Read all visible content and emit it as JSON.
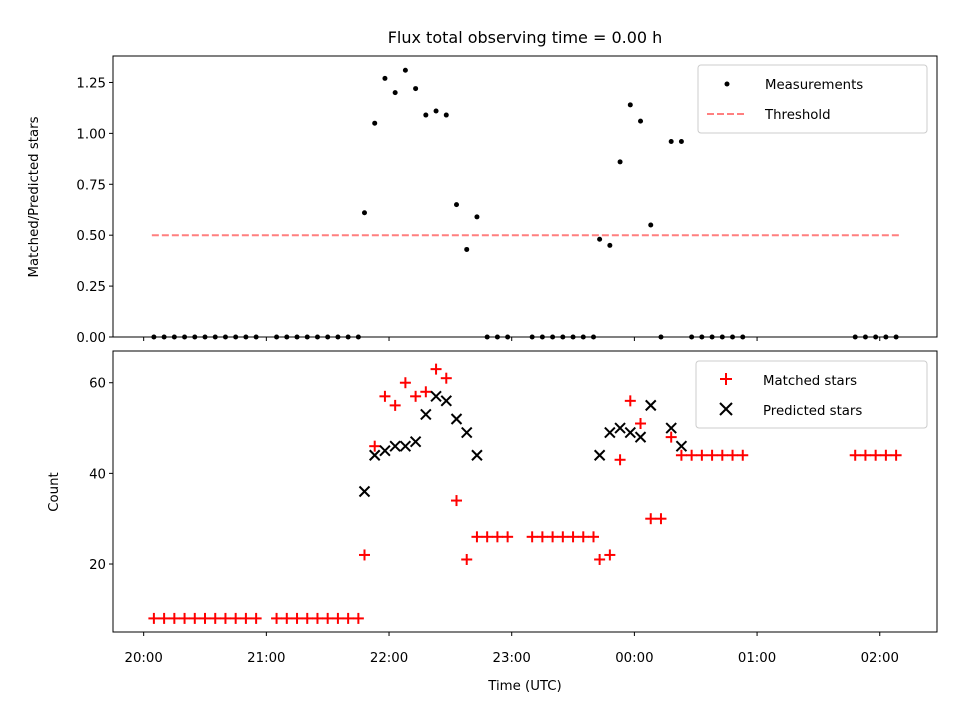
{
  "chart_data": {
    "type": "scatter",
    "title": "Flux total observing time = 0.00 h",
    "xlabel": "Time (UTC)",
    "x_tick_labels": [
      "20:00",
      "21:00",
      "22:00",
      "23:00",
      "00:00",
      "01:00",
      "02:00"
    ],
    "x_tick_times": [
      "20:00",
      "21:00",
      "22:00",
      "23:00",
      "00:00",
      "01:00",
      "02:00"
    ],
    "xlim": [
      "19:45",
      "02:28"
    ],
    "panels": [
      {
        "ylabel": "Matched/Predicted stars",
        "ylim": [
          0,
          1.38
        ],
        "y_ticks": [
          "0.00",
          "0.25",
          "0.50",
          "0.75",
          "1.00",
          "1.25"
        ],
        "y_tick_values": [
          0,
          0.25,
          0.5,
          0.75,
          1.0,
          1.25
        ],
        "legend_position": "upper right",
        "series": [
          {
            "name": "Measurements",
            "marker": "dot",
            "color": "#000000",
            "points": [
              [
                "20:05",
                0
              ],
              [
                "20:10",
                0
              ],
              [
                "20:15",
                0
              ],
              [
                "20:20",
                0
              ],
              [
                "20:25",
                0
              ],
              [
                "20:30",
                0
              ],
              [
                "20:35",
                0
              ],
              [
                "20:40",
                0
              ],
              [
                "20:45",
                0
              ],
              [
                "20:50",
                0
              ],
              [
                "20:55",
                0
              ],
              [
                "21:05",
                0
              ],
              [
                "21:10",
                0
              ],
              [
                "21:15",
                0
              ],
              [
                "21:20",
                0
              ],
              [
                "21:25",
                0
              ],
              [
                "21:30",
                0
              ],
              [
                "21:35",
                0
              ],
              [
                "21:40",
                0
              ],
              [
                "21:45",
                0
              ],
              [
                "21:48",
                0.61
              ],
              [
                "21:53",
                1.05
              ],
              [
                "21:58",
                1.27
              ],
              [
                "22:03",
                1.2
              ],
              [
                "22:08",
                1.31
              ],
              [
                "22:13",
                1.22
              ],
              [
                "22:18",
                1.09
              ],
              [
                "22:23",
                1.11
              ],
              [
                "22:28",
                1.09
              ],
              [
                "22:33",
                0.65
              ],
              [
                "22:38",
                0.43
              ],
              [
                "22:43",
                0.59
              ],
              [
                "22:48",
                0
              ],
              [
                "22:53",
                0
              ],
              [
                "22:58",
                0
              ],
              [
                "23:10",
                0
              ],
              [
                "23:15",
                0
              ],
              [
                "23:20",
                0
              ],
              [
                "23:25",
                0
              ],
              [
                "23:30",
                0
              ],
              [
                "23:35",
                0
              ],
              [
                "23:40",
                0
              ],
              [
                "23:43",
                0.48
              ],
              [
                "23:48",
                0.45
              ],
              [
                "23:53",
                0.86
              ],
              [
                "23:58",
                1.14
              ],
              [
                "00:03",
                1.06
              ],
              [
                "00:08",
                0.55
              ],
              [
                "00:13",
                0
              ],
              [
                "00:18",
                0.96
              ],
              [
                "00:23",
                0.96
              ],
              [
                "00:28",
                0
              ],
              [
                "00:33",
                0
              ],
              [
                "00:38",
                0
              ],
              [
                "00:43",
                0
              ],
              [
                "00:48",
                0
              ],
              [
                "00:53",
                0
              ],
              [
                "01:48",
                0
              ],
              [
                "01:53",
                0
              ],
              [
                "01:58",
                0
              ],
              [
                "02:03",
                0
              ],
              [
                "02:08",
                0
              ]
            ]
          },
          {
            "name": "Threshold",
            "marker": "dashed-line",
            "color": "#ff7f7f",
            "points": [
              [
                "20:04",
                0.5
              ],
              [
                "02:10",
                0.5
              ]
            ]
          }
        ]
      },
      {
        "ylabel": "Count",
        "ylim": [
          5,
          67
        ],
        "y_ticks": [
          "20",
          "40",
          "60"
        ],
        "y_tick_values": [
          20,
          40,
          60
        ],
        "legend_position": "upper right",
        "series": [
          {
            "name": "Matched stars",
            "marker": "plus",
            "color": "#ff0000",
            "points": [
              [
                "20:05",
                8
              ],
              [
                "20:10",
                8
              ],
              [
                "20:15",
                8
              ],
              [
                "20:20",
                8
              ],
              [
                "20:25",
                8
              ],
              [
                "20:30",
                8
              ],
              [
                "20:35",
                8
              ],
              [
                "20:40",
                8
              ],
              [
                "20:45",
                8
              ],
              [
                "20:50",
                8
              ],
              [
                "20:55",
                8
              ],
              [
                "21:05",
                8
              ],
              [
                "21:10",
                8
              ],
              [
                "21:15",
                8
              ],
              [
                "21:20",
                8
              ],
              [
                "21:25",
                8
              ],
              [
                "21:30",
                8
              ],
              [
                "21:35",
                8
              ],
              [
                "21:40",
                8
              ],
              [
                "21:45",
                8
              ],
              [
                "21:48",
                22
              ],
              [
                "21:53",
                46
              ],
              [
                "21:58",
                57
              ],
              [
                "22:03",
                55
              ],
              [
                "22:08",
                60
              ],
              [
                "22:13",
                57
              ],
              [
                "22:18",
                58
              ],
              [
                "22:23",
                63
              ],
              [
                "22:28",
                61
              ],
              [
                "22:33",
                34
              ],
              [
                "22:38",
                21
              ],
              [
                "22:43",
                26
              ],
              [
                "22:48",
                26
              ],
              [
                "22:53",
                26
              ],
              [
                "22:58",
                26
              ],
              [
                "23:10",
                26
              ],
              [
                "23:15",
                26
              ],
              [
                "23:20",
                26
              ],
              [
                "23:25",
                26
              ],
              [
                "23:30",
                26
              ],
              [
                "23:35",
                26
              ],
              [
                "23:40",
                26
              ],
              [
                "23:43",
                21
              ],
              [
                "23:48",
                22
              ],
              [
                "23:53",
                43
              ],
              [
                "23:58",
                56
              ],
              [
                "00:03",
                51
              ],
              [
                "00:08",
                30
              ],
              [
                "00:13",
                30
              ],
              [
                "00:18",
                48
              ],
              [
                "00:23",
                44
              ],
              [
                "00:28",
                44
              ],
              [
                "00:33",
                44
              ],
              [
                "00:38",
                44
              ],
              [
                "00:43",
                44
              ],
              [
                "00:48",
                44
              ],
              [
                "00:53",
                44
              ],
              [
                "01:48",
                44
              ],
              [
                "01:53",
                44
              ],
              [
                "01:58",
                44
              ],
              [
                "02:03",
                44
              ],
              [
                "02:08",
                44
              ]
            ]
          },
          {
            "name": "Predicted stars",
            "marker": "x",
            "color": "#000000",
            "points": [
              [
                "21:48",
                36
              ],
              [
                "21:53",
                44
              ],
              [
                "21:58",
                45
              ],
              [
                "22:03",
                46
              ],
              [
                "22:08",
                46
              ],
              [
                "22:13",
                47
              ],
              [
                "22:18",
                53
              ],
              [
                "22:23",
                57
              ],
              [
                "22:28",
                56
              ],
              [
                "22:33",
                52
              ],
              [
                "22:38",
                49
              ],
              [
                "22:43",
                44
              ],
              [
                "23:43",
                44
              ],
              [
                "23:48",
                49
              ],
              [
                "23:53",
                50
              ],
              [
                "23:58",
                49
              ],
              [
                "00:03",
                48
              ],
              [
                "00:08",
                55
              ],
              [
                "00:18",
                50
              ],
              [
                "00:23",
                46
              ]
            ]
          }
        ]
      }
    ]
  }
}
